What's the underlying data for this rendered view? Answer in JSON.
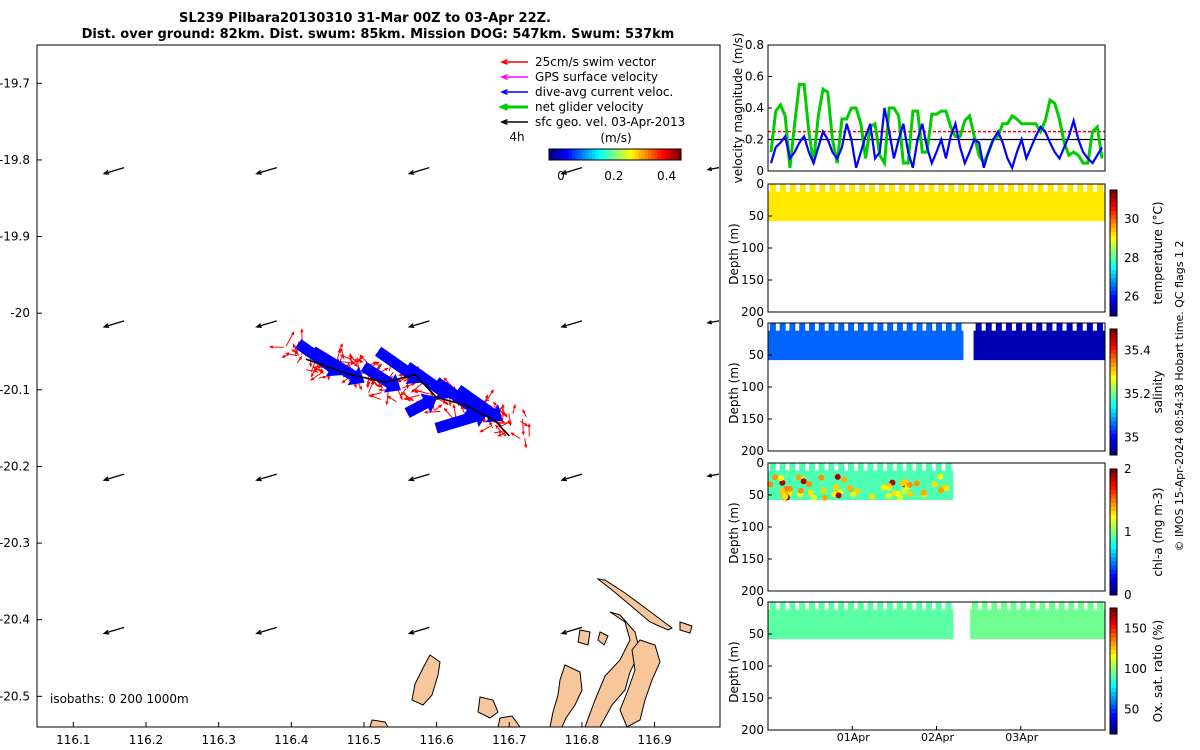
{
  "figure": {
    "title_line1": "SL239 Pilbara20130310 31-Mar 00Z to 03-Apr 22Z.",
    "title_line2": "Dist. over ground: 82km. Dist. swum: 85km. Mission DOG: 547km. Swum: 537km",
    "footer": "© IMOS 15-Apr-2024 08:54:38 Hobart time. QC flags 1  2"
  },
  "colors": {
    "swim": "#ff0000",
    "gps": "#ff00ff",
    "current": "#0000ff",
    "net": "#00cc00",
    "sfc": "#000000",
    "land": "#f7c79b"
  },
  "chart_data": [
    {
      "type": "map",
      "title": "Glider track map",
      "x_ticks": [
        116.1,
        116.2,
        116.3,
        116.4,
        116.5,
        116.6,
        116.7,
        116.8,
        116.9
      ],
      "x_tick_labels": [
        "116.1",
        "116.2",
        "116.3",
        "116.4",
        "116.5",
        "116.6",
        "116.7",
        "116.8",
        "116.9"
      ],
      "y_ticks": [
        -19.7,
        -19.8,
        -19.9,
        -20.0,
        -20.1,
        -20.2,
        -20.3,
        -20.4,
        -20.5
      ],
      "y_tick_labels": [
        "-19.7",
        "-19.8",
        "-19.9",
        "-20",
        "-20.1",
        "-20.2",
        "-20.3",
        "-20.4",
        "-20.5"
      ],
      "xlim": [
        116.05,
        116.99
      ],
      "ylim": [
        -20.54,
        -19.65
      ],
      "legend": [
        {
          "label": "25cm/s swim vector",
          "color_key": "swim"
        },
        {
          "label": "GPS surface velocity",
          "color_key": "gps"
        },
        {
          "label": "dive-avg current veloc.",
          "color_key": "current"
        },
        {
          "label": "net glider velocity",
          "color_key": "net"
        },
        {
          "label": "sfc geo. vel. 03-Apr-2013",
          "color_key": "sfc"
        }
      ],
      "legend_position": "top-right",
      "scale_label": "4h",
      "colorbar": {
        "label": "(m/s)",
        "tick_labels": [
          "0",
          "0.2",
          "0.4"
        ],
        "range": [
          0,
          0.5
        ]
      },
      "isobaths_label": "isobaths: 0   200  1000m",
      "track": [
        [
          116.42,
          -20.06
        ],
        [
          116.48,
          -20.08
        ],
        [
          116.53,
          -20.09
        ],
        [
          116.57,
          -20.08
        ],
        [
          116.6,
          -20.11
        ],
        [
          116.64,
          -20.12
        ],
        [
          116.68,
          -20.14
        ],
        [
          116.7,
          -20.16
        ]
      ],
      "current_arrows": [
        [
          116.41,
          -20.04,
          116.47,
          -20.08
        ],
        [
          116.43,
          -20.05,
          116.5,
          -20.09
        ],
        [
          116.5,
          -20.07,
          116.55,
          -20.1
        ],
        [
          116.52,
          -20.05,
          116.58,
          -20.09
        ],
        [
          116.56,
          -20.07,
          116.62,
          -20.11
        ],
        [
          116.6,
          -20.09,
          116.66,
          -20.13
        ],
        [
          116.63,
          -20.1,
          116.69,
          -20.14
        ],
        [
          116.56,
          -20.13,
          116.6,
          -20.11
        ],
        [
          116.6,
          -20.15,
          116.67,
          -20.13
        ]
      ],
      "sfc_vectors": {
        "lons": [
          116.17,
          116.38,
          116.59,
          116.8
        ],
        "lats": [
          -19.81,
          -20.01,
          -20.21,
          -20.41
        ],
        "u": -0.022,
        "v": -0.006
      }
    },
    {
      "type": "line",
      "title": "velocity magnitude",
      "ylabel": "velocity magnitude (m/s)",
      "ylim": [
        0,
        0.8
      ],
      "y_ticks": [
        0,
        0.2,
        0.4,
        0.6,
        0.8
      ],
      "y_tick_labels": [
        "0",
        "0.2",
        "0.4",
        "0.6",
        "0.8"
      ],
      "reference_lines": [
        0.25,
        0.2
      ],
      "series": [
        {
          "name": "net glider velocity",
          "color_key": "net",
          "values": [
            0.12,
            0.38,
            0.42,
            0.35,
            0.02,
            0.3,
            0.55,
            0.55,
            0.25,
            0.05,
            0.35,
            0.52,
            0.5,
            0.2,
            0.05,
            0.33,
            0.33,
            0.4,
            0.4,
            0.3,
            0.08,
            0.28,
            0.3,
            0.1,
            0.05,
            0.4,
            0.4,
            0.35,
            0.05,
            0.05,
            0.38,
            0.38,
            0.12,
            0.12,
            0.36,
            0.36,
            0.38,
            0.38,
            0.28,
            0.22,
            0.22,
            0.32,
            0.35,
            0.22,
            0.1,
            0.05,
            0.12,
            0.2,
            0.22,
            0.3,
            0.3,
            0.35,
            0.33,
            0.3,
            0.3,
            0.3,
            0.3,
            0.25,
            0.32,
            0.45,
            0.43,
            0.33,
            0.18,
            0.1,
            0.12,
            0.1,
            0.05,
            0.05,
            0.25,
            0.28,
            0.08
          ]
        },
        {
          "name": "dive-avg current veloc.",
          "color_key": "current",
          "values": [
            0.05,
            0.15,
            0.18,
            0.22,
            0.08,
            0.12,
            0.18,
            0.22,
            0.12,
            0.05,
            0.15,
            0.25,
            0.2,
            0.12,
            0.08,
            0.15,
            0.3,
            0.2,
            0.02,
            0.12,
            0.22,
            0.3,
            0.08,
            0.12,
            0.4,
            0.25,
            0.08,
            0.2,
            0.3,
            0.12,
            0.02,
            0.2,
            0.3,
            0.15,
            0.05,
            0.12,
            0.2,
            0.08,
            0.22,
            0.3,
            0.15,
            0.05,
            0.12,
            0.2,
            0.18,
            0.02,
            0.12,
            0.2,
            0.25,
            0.18,
            0.08,
            0.02,
            0.12,
            0.2,
            0.08,
            0.15,
            0.22,
            0.28,
            0.25,
            0.18,
            0.12,
            0.08,
            0.15,
            0.22,
            0.32,
            0.2,
            0.12,
            0.08,
            0.05,
            0.1,
            0.15
          ]
        }
      ]
    },
    {
      "type": "scatter",
      "title": "temperature",
      "ylabel": "Depth (m)",
      "ylim": [
        200,
        0
      ],
      "y_ticks": [
        0,
        50,
        100,
        150,
        200
      ],
      "y_tick_labels": [
        "0",
        "50",
        "100",
        "150",
        "200"
      ],
      "colorbar_label": "temperature (°C)",
      "colorbar_ticks": [
        "30",
        "28",
        "26"
      ],
      "colorbar_range": [
        25,
        31.5
      ],
      "segments": [
        {
          "t0": 0,
          "t1": 1,
          "v": 29.2
        }
      ],
      "max_depth": 58
    },
    {
      "type": "scatter",
      "title": "salinity",
      "ylabel": "Depth (m)",
      "ylim": [
        200,
        0
      ],
      "y_ticks": [
        0,
        50,
        100,
        150,
        200
      ],
      "y_tick_labels": [
        "0",
        "50",
        "100",
        "150",
        "200"
      ],
      "colorbar_label": "salinity",
      "colorbar_ticks": [
        "35.4",
        "35.2",
        "35"
      ],
      "colorbar_range": [
        34.92,
        35.5
      ],
      "segments": [
        {
          "t0": 0,
          "t1": 0.58,
          "v": 35.05
        },
        {
          "t0": 0.61,
          "t1": 1,
          "v": 34.95
        }
      ],
      "max_depth": 58
    },
    {
      "type": "scatter",
      "title": "chl-a",
      "ylabel": "Depth (m)",
      "ylim": [
        200,
        0
      ],
      "y_ticks": [
        0,
        50,
        100,
        150,
        200
      ],
      "y_tick_labels": [
        "0",
        "50",
        "100",
        "150",
        "200"
      ],
      "colorbar_label": "chl-a (mg m-3)",
      "colorbar_ticks": [
        "2",
        "1",
        "0"
      ],
      "colorbar_range": [
        0,
        2
      ],
      "segments": [
        {
          "t0": 0,
          "t1": 0.55,
          "v": 0.9
        }
      ],
      "max_depth": 58
    },
    {
      "type": "scatter",
      "title": "oxygen saturation",
      "ylabel": "Depth (m)",
      "ylim": [
        200,
        0
      ],
      "y_ticks": [
        0,
        50,
        100,
        150,
        200
      ],
      "y_tick_labels": [
        "0",
        "50",
        "100",
        "150",
        "200"
      ],
      "colorbar_label": "Ox. sat. ratio (%)",
      "colorbar_ticks": [
        "150",
        "100",
        "50"
      ],
      "colorbar_range": [
        20,
        175
      ],
      "segments": [
        {
          "t0": 0,
          "t1": 0.55,
          "v": 92
        },
        {
          "t0": 0.6,
          "t1": 1,
          "v": 95
        }
      ],
      "max_depth": 58,
      "x_ticks": [
        0.25,
        0.5,
        0.75
      ],
      "x_tick_labels": [
        "01Apr",
        "02Apr",
        "03Apr"
      ]
    }
  ]
}
